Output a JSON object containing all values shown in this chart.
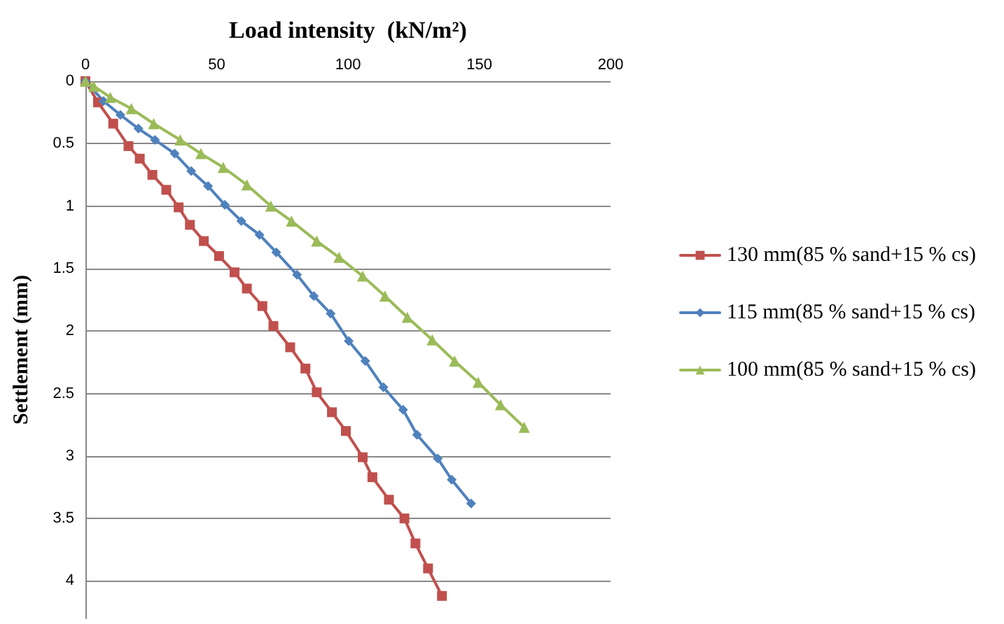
{
  "chart_data": {
    "type": "line",
    "xlabel": "Load intensity  (kN/m²)",
    "ylabel": "Settlement (mm)",
    "xlim": [
      0,
      200
    ],
    "xticks": [
      0,
      50,
      100,
      150,
      200
    ],
    "ylim": [
      4.3,
      0
    ],
    "yticks": [
      0,
      0.5,
      1,
      1.5,
      2,
      2.5,
      3,
      3.5,
      4
    ],
    "grid": "y",
    "legend": "right",
    "series": [
      {
        "name": "130 mm(85 % sand+15 % cs)",
        "color": "#c0504d",
        "marker": "square",
        "x": [
          0,
          4.8,
          10.6,
          16.4,
          20.7,
          25.5,
          30.8,
          35.5,
          39.8,
          45.1,
          50.9,
          56.8,
          61.5,
          67.4,
          71.6,
          78.0,
          83.8,
          88.1,
          93.9,
          99.2,
          105.6,
          109.3,
          115.6,
          121.5,
          125.7,
          130.5,
          135.8
        ],
        "values": [
          0,
          0.17,
          0.34,
          0.52,
          0.62,
          0.75,
          0.87,
          1.01,
          1.15,
          1.28,
          1.4,
          1.53,
          1.66,
          1.8,
          1.96,
          2.13,
          2.3,
          2.49,
          2.65,
          2.8,
          3.01,
          3.17,
          3.35,
          3.5,
          3.7,
          3.9,
          4.12
        ]
      },
      {
        "name": "115 mm(85 % sand+15 % cs)",
        "color": "#4f81bd",
        "marker": "diamond",
        "x": [
          0,
          6.9,
          13.3,
          20.2,
          26.5,
          34.0,
          40.3,
          46.7,
          53.1,
          59.4,
          66.3,
          72.7,
          80.6,
          87.0,
          93.4,
          100.3,
          106.6,
          113.5,
          121.0,
          126.3,
          134.2,
          139.5,
          146.9
        ],
        "values": [
          0,
          0.16,
          0.27,
          0.38,
          0.47,
          0.58,
          0.72,
          0.84,
          0.99,
          1.12,
          1.23,
          1.37,
          1.55,
          1.72,
          1.86,
          2.08,
          2.24,
          2.45,
          2.63,
          2.83,
          3.02,
          3.19,
          3.38
        ]
      },
      {
        "name": "100 mm(85 % sand+15 % cs)",
        "color": "#9bbb59",
        "marker": "triangle",
        "x": [
          0,
          3.2,
          9.5,
          17.5,
          26.0,
          36.1,
          44.0,
          52.5,
          61.5,
          70.6,
          78.5,
          88.1,
          96.6,
          105.6,
          114.1,
          122.6,
          132.1,
          140.6,
          149.6,
          158.1,
          167.1
        ],
        "values": [
          0,
          0.04,
          0.13,
          0.22,
          0.34,
          0.47,
          0.58,
          0.69,
          0.83,
          1.0,
          1.12,
          1.28,
          1.41,
          1.56,
          1.72,
          1.89,
          2.07,
          2.24,
          2.41,
          2.59,
          2.77
        ]
      }
    ]
  }
}
